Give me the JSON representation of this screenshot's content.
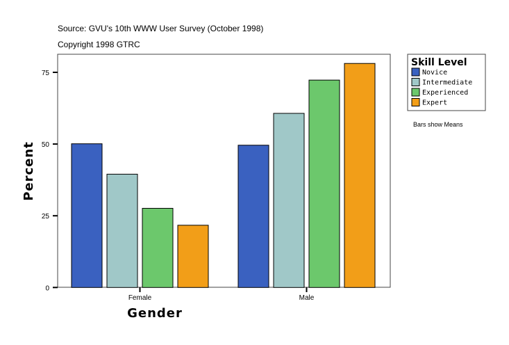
{
  "chart_data": {
    "type": "bar",
    "subtitle_lines": [
      "Source: GVU's 10th WWW User Survey (October 1998)",
      "Copyright 1998 GTRC"
    ],
    "xlabel": "Gender",
    "ylabel": "Percent",
    "categories": [
      "Female",
      "Male"
    ],
    "ylim": [
      0,
      81
    ],
    "yticks": [
      0,
      25,
      50,
      75
    ],
    "grid": false,
    "legend": {
      "title": "Skill Level",
      "placement": "top-right"
    },
    "note": "Bars show Means",
    "series": [
      {
        "name": "Novice",
        "color": "#3a61c0",
        "values": [
          50.1,
          49.6
        ]
      },
      {
        "name": "Intermediate",
        "color": "#a0c8c8",
        "values": [
          39.5,
          60.7
        ]
      },
      {
        "name": "Experienced",
        "color": "#6cc86c",
        "values": [
          27.6,
          72.3
        ]
      },
      {
        "name": "Expert",
        "color": "#f29e18",
        "values": [
          21.7,
          78.1
        ]
      }
    ]
  }
}
